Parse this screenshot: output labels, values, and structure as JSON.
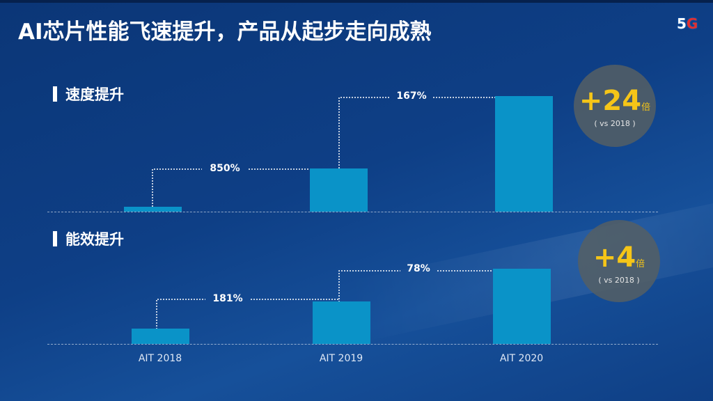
{
  "title": "AI芯片性能飞速提升，产品从起步走向成熟",
  "logo": {
    "text": "5",
    "accent": "G"
  },
  "chart_data": [
    {
      "type": "bar",
      "title": "速度提升",
      "categories": [
        "AIT 2018",
        "AIT 2019",
        "AIT 2020"
      ],
      "values": [
        1,
        9.5,
        25.4
      ],
      "annotations": [
        "850%",
        "167%"
      ],
      "summary": {
        "value": "+24",
        "unit": "倍",
        "note": "( vs 2018 )"
      }
    },
    {
      "type": "bar",
      "title": "能效提升",
      "categories": [
        "AIT 2018",
        "AIT 2019",
        "AIT 2020"
      ],
      "values": [
        1,
        2.81,
        5.0
      ],
      "annotations": [
        "181%",
        "78%"
      ],
      "summary": {
        "value": "+4",
        "unit": "倍",
        "note": "( vs 2018 )"
      }
    }
  ],
  "colors": {
    "bar": "#0a93c8",
    "highlight": "#f5c518"
  }
}
